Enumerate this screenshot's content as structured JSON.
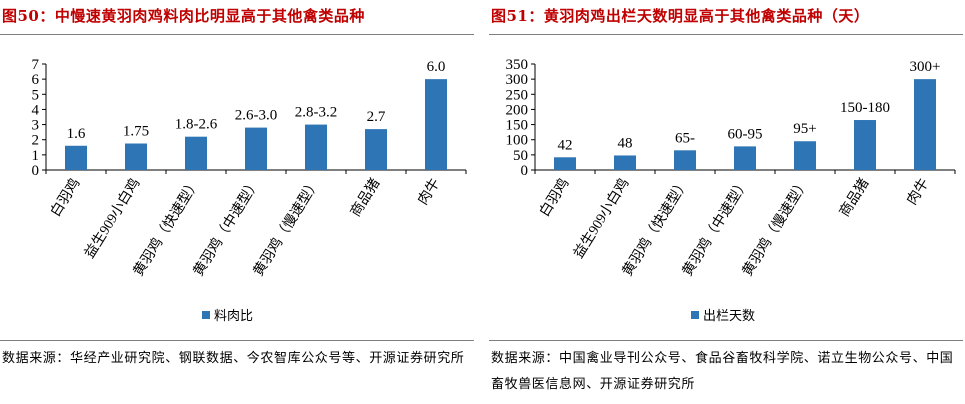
{
  "panels": [
    {
      "title": "图50：中慢速黄羽肉鸡料肉比明显高于其他禽类品种",
      "source": "数据来源：华经产业研究院、钢联数据、今农智库公众号等、开源证券研究所",
      "accent_color": "#c00000",
      "chart_data": {
        "type": "bar",
        "categories": [
          "白羽鸡",
          "益生909小白鸡",
          "黄羽鸡（快速型）",
          "黄羽鸡（中速型）",
          "黄羽鸡（慢速型）",
          "商品猪",
          "肉牛"
        ],
        "series": [
          {
            "name": "料肉比",
            "values": [
              1.6,
              1.75,
              2.2,
              2.8,
              3.0,
              2.7,
              6.0
            ],
            "color": "#2e75b6"
          }
        ],
        "data_labels": [
          "1.6",
          "1.75",
          "1.8-2.6",
          "2.6-3.0",
          "2.8-3.2",
          "2.7",
          "6.0"
        ],
        "y_ticks": [
          "0",
          "1",
          "2",
          "3",
          "4",
          "5",
          "6",
          "7"
        ],
        "ylim": [
          0,
          7
        ],
        "grid": false,
        "legend_position": "bottom"
      }
    },
    {
      "title": "图51：黄羽肉鸡出栏天数明显高于其他禽类品种（天）",
      "source": "数据来源：中国禽业导刊公众号、食品谷畜牧科学院、诺立生物公众号、中国畜牧兽医信息网、开源证券研究所",
      "accent_color": "#c00000",
      "chart_data": {
        "type": "bar",
        "categories": [
          "白羽鸡",
          "益生909小白鸡",
          "黄羽鸡（快速型）",
          "黄羽鸡（中速型）",
          "黄羽鸡（慢速型）",
          "商品猪",
          "肉牛"
        ],
        "series": [
          {
            "name": "出栏天数",
            "values": [
              42,
              48,
              65,
              78,
              95,
              165,
              300
            ],
            "color": "#2e75b6"
          }
        ],
        "data_labels": [
          "42",
          "48",
          "65-",
          "60-95",
          "95+",
          "150-180",
          "300+"
        ],
        "y_ticks": [
          "0",
          "50",
          "100",
          "150",
          "200",
          "250",
          "300",
          "350"
        ],
        "ylim": [
          0,
          350
        ],
        "grid": false,
        "legend_position": "bottom"
      }
    }
  ]
}
